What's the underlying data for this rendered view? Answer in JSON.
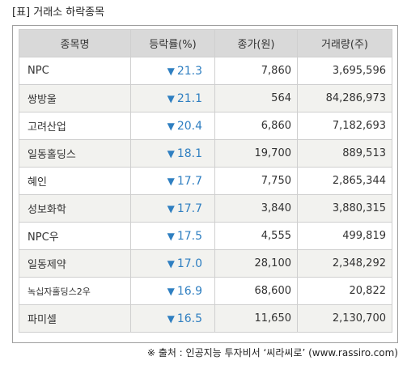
{
  "title": "[표] 거래소 하락종목",
  "headers": {
    "name": "종목명",
    "change": "등락률(%)",
    "close": "종가(원)",
    "volume": "거래량(주)"
  },
  "down_arrow": "▼",
  "colors": {
    "change_text": "#2f7fc1",
    "header_bg": "#d9d9d9",
    "alt_row_bg": "#f2f2ef",
    "border": "#cfcfcf"
  },
  "rows": [
    {
      "name": "NPC",
      "change": "21.3",
      "close": "7,860",
      "volume": "3,695,596"
    },
    {
      "name": "쌍방울",
      "change": "21.1",
      "close": "564",
      "volume": "84,286,973"
    },
    {
      "name": "고려산업",
      "change": "20.4",
      "close": "6,860",
      "volume": "7,182,693"
    },
    {
      "name": "일동홀딩스",
      "change": "18.1",
      "close": "19,700",
      "volume": "889,513"
    },
    {
      "name": "혜인",
      "change": "17.7",
      "close": "7,750",
      "volume": "2,865,344"
    },
    {
      "name": "성보화학",
      "change": "17.7",
      "close": "3,840",
      "volume": "3,880,315"
    },
    {
      "name": "NPC우",
      "change": "17.5",
      "close": "4,555",
      "volume": "499,819"
    },
    {
      "name": "일동제약",
      "change": "17.0",
      "close": "28,100",
      "volume": "2,348,292"
    },
    {
      "name": "녹십자홀딩스2우",
      "change": "16.9",
      "close": "68,600",
      "volume": "20,822"
    },
    {
      "name": "파미셀",
      "change": "16.5",
      "close": "11,650",
      "volume": "2,130,700"
    }
  ],
  "source": "※ 출처 : 인공지능 투자비서 ‘씨라씨로’ (www.rassiro.com)"
}
